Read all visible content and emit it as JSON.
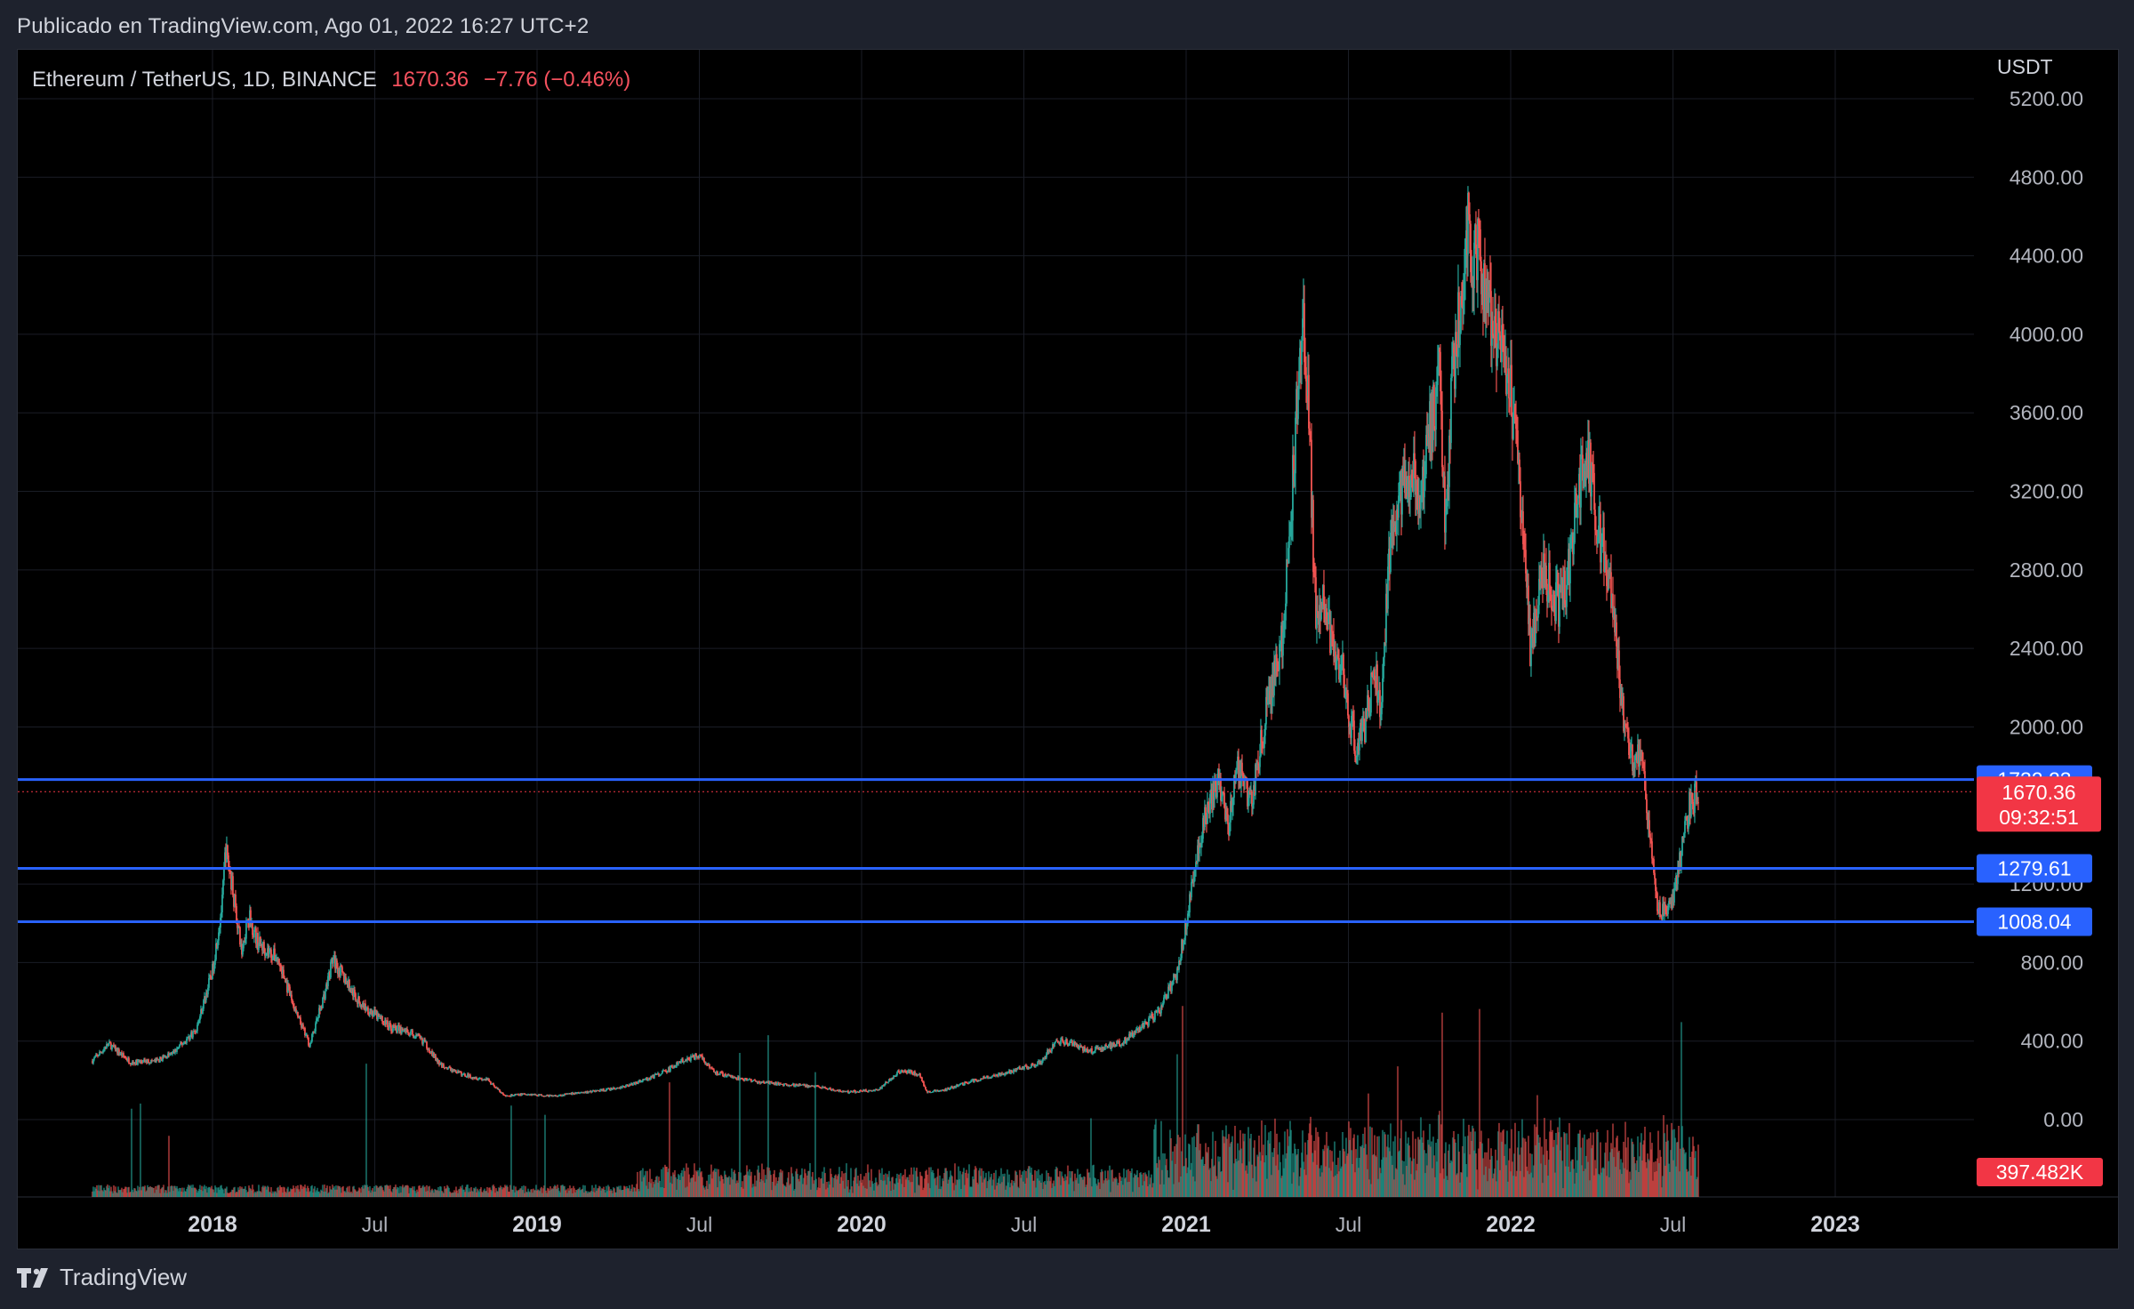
{
  "caption": "Publicado en TradingView.com, Ago 01, 2022 16:27 UTC+2",
  "legend": {
    "symbol": "Ethereum / TetherUS, 1D, BINANCE",
    "last": "1670.36",
    "change": "−7.76 (−0.46%)"
  },
  "brand": {
    "name": "TradingView",
    "icon": "tradingview-logo-icon"
  },
  "colors": {
    "background": "#000000",
    "up": "#26a69a",
    "down": "#ef5350",
    "hline": "#2962ff",
    "price_label": "#f23645",
    "text": "#d1d4dc"
  },
  "chart_data": {
    "type": "candlestick",
    "symbol": "ETHUSDT",
    "timeframe": "1D",
    "exchange": "BINANCE",
    "currency": "USDT",
    "y_ticks": [
      "5200.00",
      "4800.00",
      "4400.00",
      "4000.00",
      "3600.00",
      "3200.00",
      "2800.00",
      "2400.00",
      "2000.00",
      "1200.00",
      "800.00",
      "400.00",
      "0.00"
    ],
    "y_tick_values": [
      5200,
      4800,
      4400,
      4000,
      3600,
      3200,
      2800,
      2400,
      2000,
      1200,
      800,
      400,
      0
    ],
    "x_ticks": [
      {
        "label": "2018",
        "t": 2018.0,
        "bold": true
      },
      {
        "label": "Jul",
        "t": 2018.5,
        "bold": false
      },
      {
        "label": "2019",
        "t": 2019.0,
        "bold": true
      },
      {
        "label": "Jul",
        "t": 2019.5,
        "bold": false
      },
      {
        "label": "2020",
        "t": 2020.0,
        "bold": true
      },
      {
        "label": "Jul",
        "t": 2020.5,
        "bold": false
      },
      {
        "label": "2021",
        "t": 2021.0,
        "bold": true
      },
      {
        "label": "Jul",
        "t": 2021.5,
        "bold": false
      },
      {
        "label": "2022",
        "t": 2022.0,
        "bold": true
      },
      {
        "label": "Jul",
        "t": 2022.5,
        "bold": false
      },
      {
        "label": "2023",
        "t": 2023.0,
        "bold": true
      }
    ],
    "y_range": [
      0,
      5200
    ],
    "close_path": [
      [
        2017.63,
        300
      ],
      [
        2017.68,
        385
      ],
      [
        2017.75,
        290
      ],
      [
        2017.83,
        300
      ],
      [
        2017.88,
        340
      ],
      [
        2017.95,
        460
      ],
      [
        2018.0,
        760
      ],
      [
        2018.03,
        1100
      ],
      [
        2018.04,
        1380
      ],
      [
        2018.06,
        1200
      ],
      [
        2018.09,
        850
      ],
      [
        2018.11,
        1050
      ],
      [
        2018.14,
        900
      ],
      [
        2018.2,
        820
      ],
      [
        2018.26,
        530
      ],
      [
        2018.3,
        380
      ],
      [
        2018.35,
        670
      ],
      [
        2018.37,
        820
      ],
      [
        2018.45,
        600
      ],
      [
        2018.55,
        470
      ],
      [
        2018.6,
        450
      ],
      [
        2018.65,
        400
      ],
      [
        2018.7,
        280
      ],
      [
        2018.77,
        230
      ],
      [
        2018.85,
        200
      ],
      [
        2018.9,
        120
      ],
      [
        2018.97,
        130
      ],
      [
        2019.05,
        120
      ],
      [
        2019.15,
        140
      ],
      [
        2019.25,
        160
      ],
      [
        2019.33,
        200
      ],
      [
        2019.4,
        250
      ],
      [
        2019.45,
        300
      ],
      [
        2019.5,
        330
      ],
      [
        2019.55,
        240
      ],
      [
        2019.65,
        200
      ],
      [
        2019.75,
        180
      ],
      [
        2019.85,
        170
      ],
      [
        2019.95,
        140
      ],
      [
        2020.05,
        150
      ],
      [
        2020.12,
        250
      ],
      [
        2020.18,
        230
      ],
      [
        2020.2,
        140
      ],
      [
        2020.25,
        150
      ],
      [
        2020.35,
        200
      ],
      [
        2020.45,
        240
      ],
      [
        2020.55,
        290
      ],
      [
        2020.6,
        400
      ],
      [
        2020.65,
        390
      ],
      [
        2020.7,
        350
      ],
      [
        2020.8,
        390
      ],
      [
        2020.85,
        450
      ],
      [
        2020.92,
        560
      ],
      [
        2020.97,
        740
      ],
      [
        2021.0,
        1000
      ],
      [
        2021.02,
        1250
      ],
      [
        2021.05,
        1500
      ],
      [
        2021.1,
        1750
      ],
      [
        2021.13,
        1500
      ],
      [
        2021.16,
        1800
      ],
      [
        2021.2,
        1600
      ],
      [
        2021.25,
        2100
      ],
      [
        2021.3,
        2500
      ],
      [
        2021.33,
        3300
      ],
      [
        2021.36,
        4150
      ],
      [
        2021.38,
        3500
      ],
      [
        2021.4,
        2500
      ],
      [
        2021.42,
        2700
      ],
      [
        2021.45,
        2400
      ],
      [
        2021.48,
        2300
      ],
      [
        2021.52,
        1900
      ],
      [
        2021.55,
        2000
      ],
      [
        2021.58,
        2300
      ],
      [
        2021.6,
        2100
      ],
      [
        2021.63,
        3000
      ],
      [
        2021.67,
        3200
      ],
      [
        2021.7,
        3300
      ],
      [
        2021.72,
        3100
      ],
      [
        2021.75,
        3500
      ],
      [
        2021.78,
        3800
      ],
      [
        2021.8,
        3000
      ],
      [
        2021.82,
        3800
      ],
      [
        2021.85,
        4200
      ],
      [
        2021.87,
        4600
      ],
      [
        2021.88,
        4300
      ],
      [
        2021.9,
        4500
      ],
      [
        2021.93,
        4100
      ],
      [
        2021.97,
        3900
      ],
      [
        2022.0,
        3700
      ],
      [
        2022.03,
        3200
      ],
      [
        2022.06,
        2400
      ],
      [
        2022.1,
        2800
      ],
      [
        2022.15,
        2600
      ],
      [
        2022.18,
        2800
      ],
      [
        2022.21,
        3200
      ],
      [
        2022.24,
        3400
      ],
      [
        2022.27,
        3000
      ],
      [
        2022.3,
        2800
      ],
      [
        2022.35,
        2000
      ],
      [
        2022.38,
        1800
      ],
      [
        2022.4,
        1900
      ],
      [
        2022.43,
        1400
      ],
      [
        2022.45,
        1100
      ],
      [
        2022.47,
        1050
      ],
      [
        2022.5,
        1100
      ],
      [
        2022.52,
        1300
      ],
      [
        2022.55,
        1600
      ],
      [
        2022.58,
        1670
      ]
    ],
    "horizontal_levels": [
      {
        "price": 1732.23,
        "label": "1732.23"
      },
      {
        "price": 1279.61,
        "label": "1279.61"
      },
      {
        "price": 1008.04,
        "label": "1008.04"
      }
    ],
    "last_price": {
      "value": 1670.36,
      "label": "1670.36",
      "countdown": "09:32:51"
    },
    "volume": {
      "last_label": "397.482K"
    },
    "grid": true
  }
}
